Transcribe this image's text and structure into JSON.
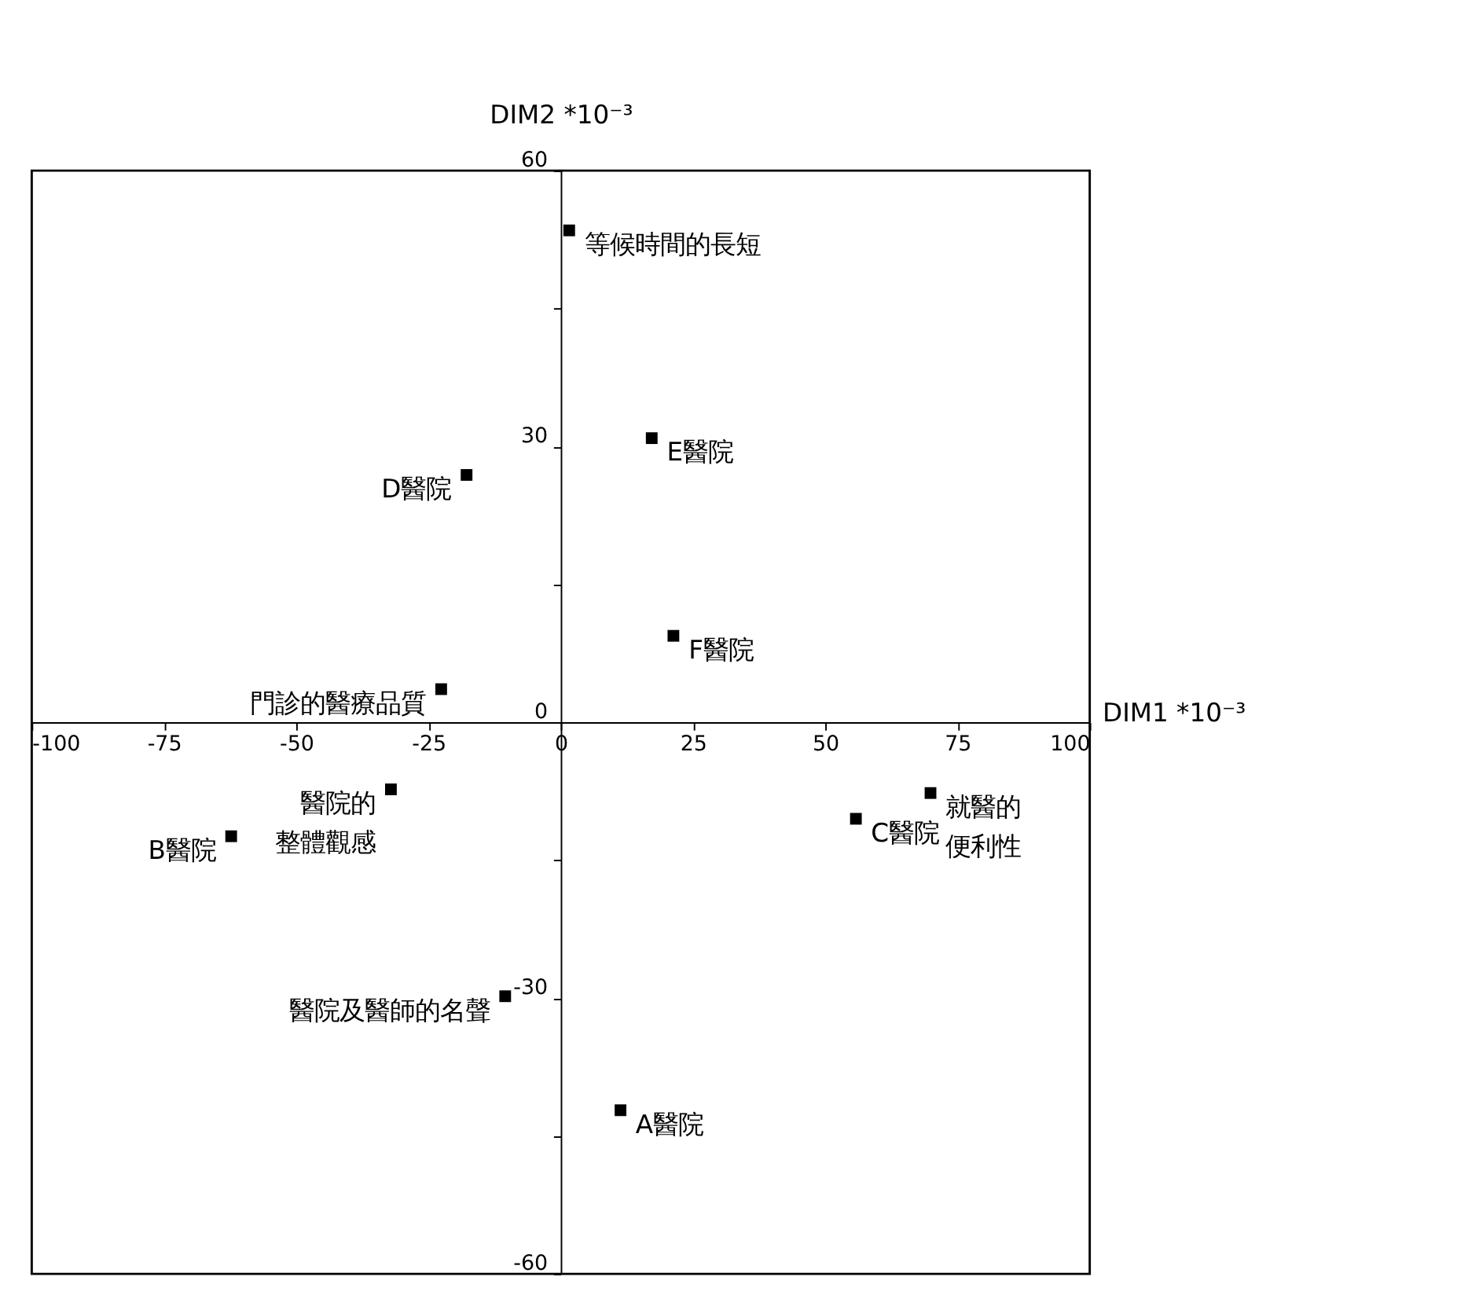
{
  "chart_data": {
    "type": "scatter",
    "xlabel": "DIM1 *10⁻³",
    "ylabel": "DIM2 *10⁻³",
    "x": [
      1.6,
      17.2,
      -17.8,
      21.3,
      -22.6,
      -32.1,
      -62.3,
      55.8,
      69.9,
      -10.5,
      11.3
    ],
    "series": [
      {
        "color": "#000000",
        "values": [
          53.5,
          30.9,
          26.9,
          9.4,
          3.6,
          -7.3,
          -12.4,
          -10.5,
          -7.7,
          -29.8,
          -42.2
        ]
      }
    ],
    "marker": "square",
    "grid": false,
    "xlim": [
      -100,
      100
    ],
    "xticks": [
      -100,
      -75,
      -50,
      -25,
      0,
      25,
      50,
      75,
      100
    ],
    "ylim": [
      -60,
      60
    ],
    "yticks": [
      -60,
      {
        "value": -45,
        "label": null
      },
      -30,
      {
        "value": -15,
        "label": null
      },
      0,
      {
        "value": 15,
        "label": null
      },
      30,
      {
        "value": 45,
        "label": null
      },
      60
    ],
    "annotations": [
      {
        "text": "等候時間的長短",
        "x": 1.6,
        "y": 53.5
      },
      {
        "text": "E醫院",
        "x": 17.2,
        "y": 30.9
      },
      {
        "text": "D醫院",
        "x": -17.8,
        "y": 26.9
      },
      {
        "text": "F醫院",
        "x": 21.3,
        "y": 9.4
      },
      {
        "text": "門診的醫療品質",
        "x": -22.6,
        "y": 3.6
      },
      {
        "text": "醫院的",
        "x": -32.1,
        "y": -7.3
      },
      {
        "text": "整體觀感",
        "x": -32.1,
        "y": -7.3
      },
      {
        "text": "B醫院",
        "x": -62.3,
        "y": -12.4
      },
      {
        "text": "C醫院",
        "x": 55.8,
        "y": -10.5
      },
      {
        "text": "就醫的",
        "x": 69.9,
        "y": -7.7
      },
      {
        "text": "便利性",
        "x": 69.9,
        "y": -7.7
      },
      {
        "text": "醫院及醫師的名聲",
        "x": -10.5,
        "y": -29.8
      },
      {
        "text": "A醫院",
        "x": 11.3,
        "y": -42.2
      }
    ]
  }
}
